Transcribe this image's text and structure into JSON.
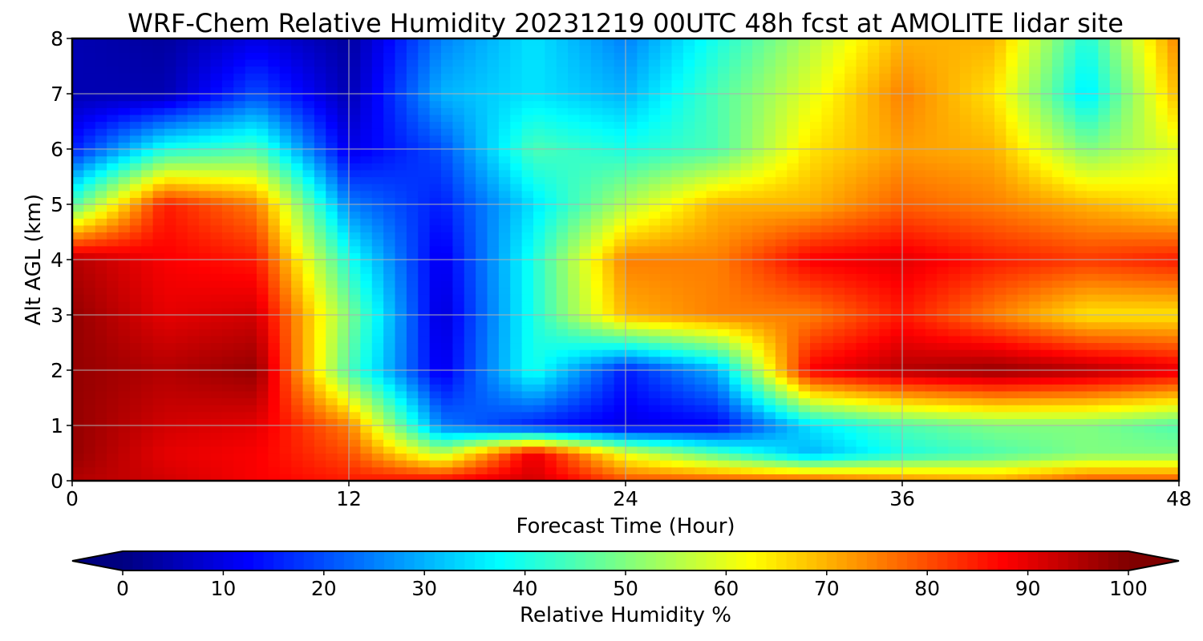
{
  "chart_data": {
    "type": "heatmap",
    "title": "WRF-Chem Relative Humidity 20231219 00UTC 48h fcst at AMOLITE lidar site",
    "xlabel": "Forecast Time (Hour)",
    "ylabel": "Alt AGL (km)",
    "xlim": [
      0,
      48
    ],
    "ylim": [
      0,
      8
    ],
    "x_ticks": [
      "0",
      "12",
      "24",
      "36",
      "48"
    ],
    "y_ticks": [
      "0",
      "1",
      "2",
      "3",
      "4",
      "5",
      "6",
      "7",
      "8"
    ],
    "grid": true,
    "x": [
      0,
      4,
      8,
      12,
      16,
      20,
      24,
      28,
      32,
      36,
      40,
      44,
      48
    ],
    "y": [
      0,
      0.5,
      1,
      2,
      3,
      4,
      5,
      6,
      7,
      8
    ],
    "z": [
      [
        95,
        92,
        88,
        85,
        88,
        92,
        80,
        80,
        80,
        75,
        72,
        80,
        80
      ],
      [
        98,
        90,
        88,
        80,
        55,
        90,
        60,
        45,
        30,
        40,
        45,
        50,
        50
      ],
      [
        98,
        92,
        90,
        75,
        25,
        15,
        10,
        12,
        35,
        45,
        50,
        50,
        45
      ],
      [
        98,
        95,
        98,
        45,
        10,
        40,
        15,
        30,
        88,
        95,
        98,
        95,
        90
      ],
      [
        98,
        90,
        92,
        50,
        8,
        40,
        70,
        75,
        75,
        85,
        75,
        65,
        65
      ],
      [
        95,
        88,
        85,
        40,
        10,
        40,
        75,
        75,
        88,
        90,
        85,
        82,
        85
      ],
      [
        45,
        85,
        75,
        25,
        15,
        35,
        55,
        70,
        70,
        78,
        75,
        70,
        65
      ],
      [
        15,
        40,
        45,
        10,
        20,
        45,
        40,
        45,
        65,
        72,
        70,
        50,
        60
      ],
      [
        5,
        5,
        20,
        5,
        30,
        35,
        30,
        45,
        60,
        75,
        65,
        35,
        70
      ],
      [
        5,
        3,
        10,
        3,
        25,
        35,
        25,
        40,
        55,
        70,
        70,
        40,
        75
      ]
    ],
    "colorbar": {
      "label": "Relative Humidity %",
      "ticks": [
        "0",
        "10",
        "20",
        "30",
        "40",
        "50",
        "60",
        "70",
        "80",
        "90",
        "100"
      ],
      "range": [
        0,
        100
      ],
      "extend": "both",
      "colormap": "jet"
    }
  }
}
